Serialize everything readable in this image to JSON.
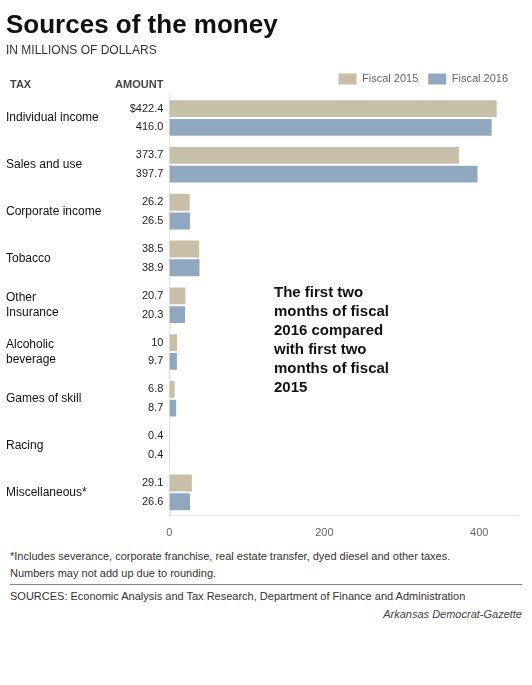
{
  "chart_data": {
    "type": "bar",
    "orientation": "horizontal",
    "title": "Sources of the money",
    "subtitle": "IN MILLIONS OF DOLLARS",
    "column_headers": [
      "TAX",
      "AMOUNT"
    ],
    "categories": [
      "Individual income",
      "Sales and use",
      "Corporate income",
      "Tobacco",
      "Other\nInsurance",
      "Alcoholic\nbeverage",
      "Games of skill",
      "Racing",
      "Miscellaneous*"
    ],
    "series": [
      {
        "name": "Fiscal 2015",
        "color": "#c8bfa8",
        "values": [
          422.4,
          373.7,
          26.2,
          38.5,
          20.7,
          10.0,
          6.8,
          0.4,
          29.1
        ],
        "value_labels": [
          "$422.4",
          "373.7",
          "26.2",
          "38.5",
          "20.7",
          "10",
          "6.8",
          "0.4",
          "29.1"
        ]
      },
      {
        "name": "Fiscal 2016",
        "color": "#8fa8c0",
        "values": [
          416.0,
          397.7,
          26.5,
          38.9,
          20.3,
          9.7,
          8.7,
          0.4,
          26.6
        ],
        "value_labels": [
          "416.0",
          "397.7",
          "26.5",
          "38.9",
          "20.3",
          "9.7",
          "8.7",
          "0.4",
          "26.6"
        ]
      }
    ],
    "xlim": [
      0,
      450
    ],
    "xticks": [
      0,
      200,
      400
    ],
    "grid": false,
    "legend": "top",
    "data_labels": true,
    "annotations": [
      "The first two\nmonths of fiscal\n2016 compared\nwith first two\nmonths of fiscal\n2015"
    ],
    "footnotes": [
      "*Includes severance, corporate franchise, real estate transfer, dyed diesel and other taxes.",
      "Numbers may not add up due to rounding."
    ],
    "source": "SOURCES: Economic Analysis and Tax Research, Department of Finance and Administration",
    "credit": "Arkansas Democrat-Gazette"
  }
}
